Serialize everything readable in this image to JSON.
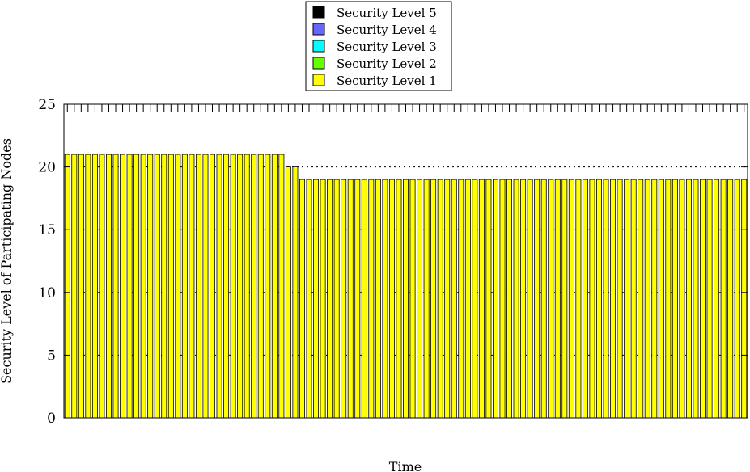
{
  "chart_data": {
    "type": "bar",
    "stacked": true,
    "xlabel": "Time",
    "ylabel": "Security Level of Participating Nodes",
    "ylim": [
      0,
      25
    ],
    "yticks": [
      "0",
      "5",
      "10",
      "15",
      "20",
      "25"
    ],
    "grid": "horizontal dotted",
    "legend_position": "top-center",
    "legend": [
      {
        "label": "Security Level 5",
        "color": "#000000"
      },
      {
        "label": "Security Level 4",
        "color": "#6666ff"
      },
      {
        "label": "Security Level 3",
        "color": "#00ffff"
      },
      {
        "label": "Security Level 2",
        "color": "#66ff00"
      },
      {
        "label": "Security Level 1",
        "color": "#ffff00"
      }
    ],
    "series": [
      {
        "name": "Security Level 1",
        "color": "#ffff00",
        "values": [
          21,
          21,
          21,
          21,
          21,
          21,
          21,
          21,
          21,
          21,
          21,
          21,
          21,
          21,
          21,
          21,
          21,
          21,
          21,
          21,
          21,
          21,
          21,
          21,
          21,
          21,
          21,
          21,
          21,
          21,
          21,
          21,
          20,
          20,
          19,
          19,
          19,
          19,
          19,
          19,
          19,
          19,
          19,
          19,
          19,
          19,
          19,
          19,
          19,
          19,
          19,
          19,
          19,
          19,
          19,
          19,
          19,
          19,
          19,
          19,
          19,
          19,
          19,
          19,
          19,
          19,
          19,
          19,
          19,
          19,
          19,
          19,
          19,
          19,
          19,
          19,
          19,
          19,
          19,
          19,
          19,
          19,
          19,
          19,
          19,
          19,
          19,
          19,
          19,
          19,
          19,
          19,
          19,
          19,
          19,
          19,
          19,
          19,
          19
        ]
      }
    ]
  }
}
